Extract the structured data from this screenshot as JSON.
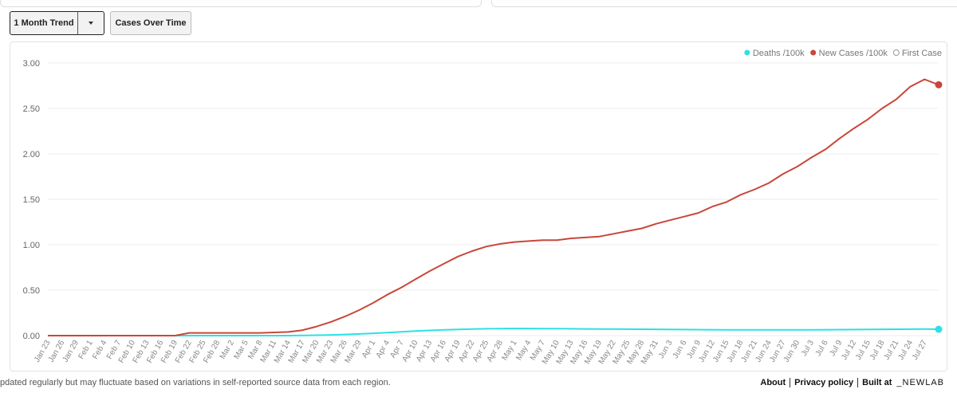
{
  "controls": {
    "trend_button": "1 Month Trend",
    "cases_button": "Cases Over Time"
  },
  "chart_data": {
    "type": "line",
    "categories": [
      "Jan 23",
      "Jan 26",
      "Jan 29",
      "Feb 1",
      "Feb 4",
      "Feb 7",
      "Feb 10",
      "Feb 13",
      "Feb 16",
      "Feb 19",
      "Feb 22",
      "Feb 25",
      "Feb 28",
      "Mar 2",
      "Mar 5",
      "Mar 8",
      "Mar 11",
      "Mar 14",
      "Mar 17",
      "Mar 20",
      "Mar 23",
      "Mar 26",
      "Mar 29",
      "Apr 1",
      "Apr 4",
      "Apr 7",
      "Apr 10",
      "Apr 13",
      "Apr 16",
      "Apr 19",
      "Apr 22",
      "Apr 25",
      "Apr 28",
      "May 1",
      "May 4",
      "May 7",
      "May 10",
      "May 13",
      "May 16",
      "May 19",
      "May 22",
      "May 25",
      "May 28",
      "May 31",
      "Jun 3",
      "Jun 6",
      "Jun 9",
      "Jun 12",
      "Jun 15",
      "Jun 18",
      "Jun 21",
      "Jun 24",
      "Jun 27",
      "Jun 30",
      "Jul 3",
      "Jul 6",
      "Jul 9",
      "Jul 12",
      "Jul 15",
      "Jul 18",
      "Jul 21",
      "Jul 24",
      "Jul 27",
      null
    ],
    "series": [
      {
        "name": "Deaths /100k",
        "color": "#2de0e6",
        "values": [
          0,
          0,
          0,
          0,
          0,
          0,
          0,
          0,
          0,
          0,
          0,
          0,
          0,
          0,
          0,
          0,
          0,
          0,
          0.002,
          0.004,
          0.008,
          0.012,
          0.018,
          0.025,
          0.033,
          0.042,
          0.05,
          0.057,
          0.063,
          0.068,
          0.072,
          0.075,
          0.077,
          0.078,
          0.078,
          0.077,
          0.076,
          0.075,
          0.074,
          0.073,
          0.072,
          0.071,
          0.07,
          0.069,
          0.068,
          0.067,
          0.066,
          0.065,
          0.064,
          0.063,
          0.063,
          0.063,
          0.063,
          0.064,
          0.064,
          0.065,
          0.066,
          0.067,
          0.068,
          0.069,
          0.07,
          0.071,
          0.072,
          0.07
        ]
      },
      {
        "name": "New Cases /100k",
        "color": "#c8473b",
        "values": [
          0,
          0,
          0,
          0,
          0,
          0,
          0,
          0,
          0,
          0,
          0.03,
          0.03,
          0.03,
          0.03,
          0.03,
          0.03,
          0.035,
          0.04,
          0.06,
          0.1,
          0.15,
          0.21,
          0.28,
          0.36,
          0.45,
          0.53,
          0.62,
          0.71,
          0.79,
          0.87,
          0.93,
          0.98,
          1.01,
          1.03,
          1.04,
          1.05,
          1.05,
          1.07,
          1.08,
          1.09,
          1.12,
          1.15,
          1.18,
          1.23,
          1.27,
          1.31,
          1.35,
          1.42,
          1.47,
          1.55,
          1.61,
          1.68,
          1.78,
          1.86,
          1.96,
          2.05,
          2.17,
          2.28,
          2.38,
          2.5,
          2.6,
          2.74,
          2.82,
          2.76
        ]
      }
    ],
    "first_case_legend": "First Case",
    "ylim": [
      0,
      3
    ],
    "yticks": [
      {
        "value": 0,
        "label": "0.00"
      },
      {
        "value": 0.5,
        "label": "0.50"
      },
      {
        "value": 1,
        "label": "1.00"
      },
      {
        "value": 1.5,
        "label": "1.50"
      },
      {
        "value": 2,
        "label": "2.00"
      },
      {
        "value": 2.5,
        "label": "2.50"
      },
      {
        "value": 3,
        "label": "3.00"
      }
    ],
    "grid": true,
    "legend": "top-right"
  },
  "footer": {
    "note": "pdated regularly but may fluctuate based on variations in self-reported source data from each region.",
    "about": "About",
    "privacy": "Privacy policy",
    "built_at": "Built at",
    "brand": "_NEWLAB"
  }
}
